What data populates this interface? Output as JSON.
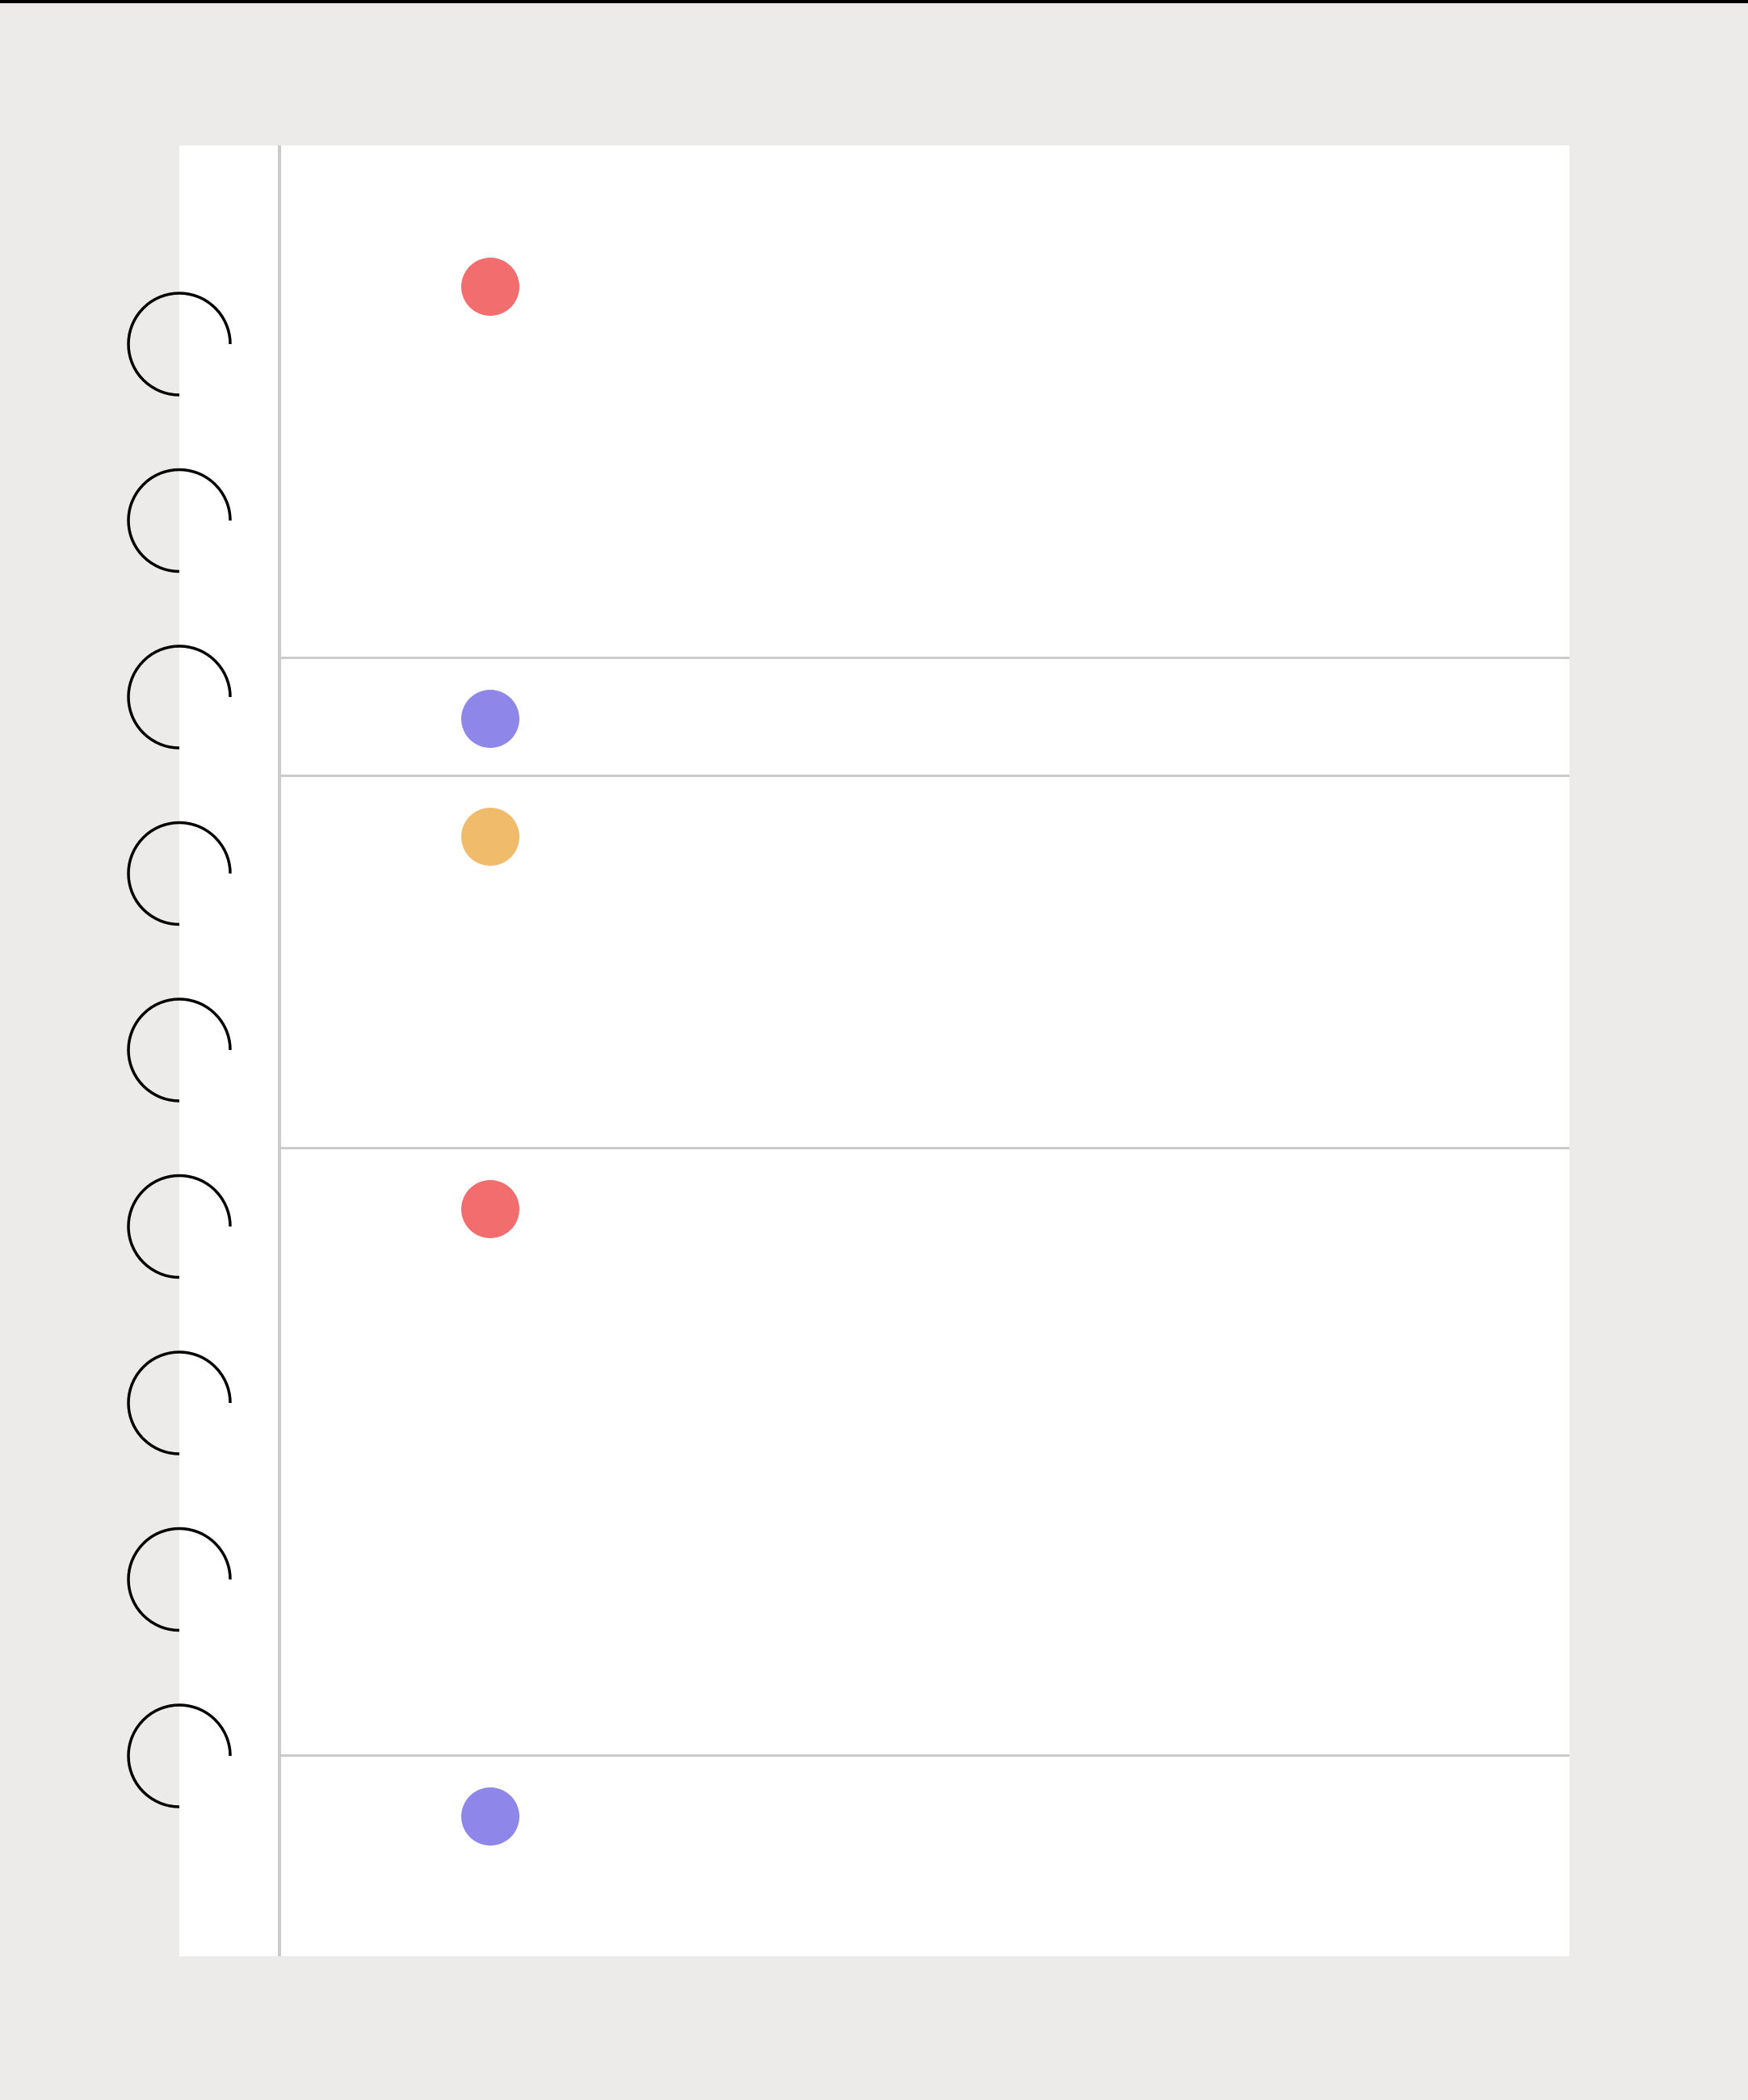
{
  "notebook": {
    "background_color": "#ecebe9",
    "page_color": "#ffffff",
    "rule_color": "#cbcbcb",
    "ring_color": "#000000",
    "ring_count": 9,
    "entries": [
      {
        "marker_color": "#f26d6d"
      },
      {
        "marker_color": "#8e86e8"
      },
      {
        "marker_color": "#f0bc6c"
      },
      {
        "marker_color": "#f26d6d"
      },
      {
        "marker_color": "#8e86e8"
      }
    ]
  }
}
